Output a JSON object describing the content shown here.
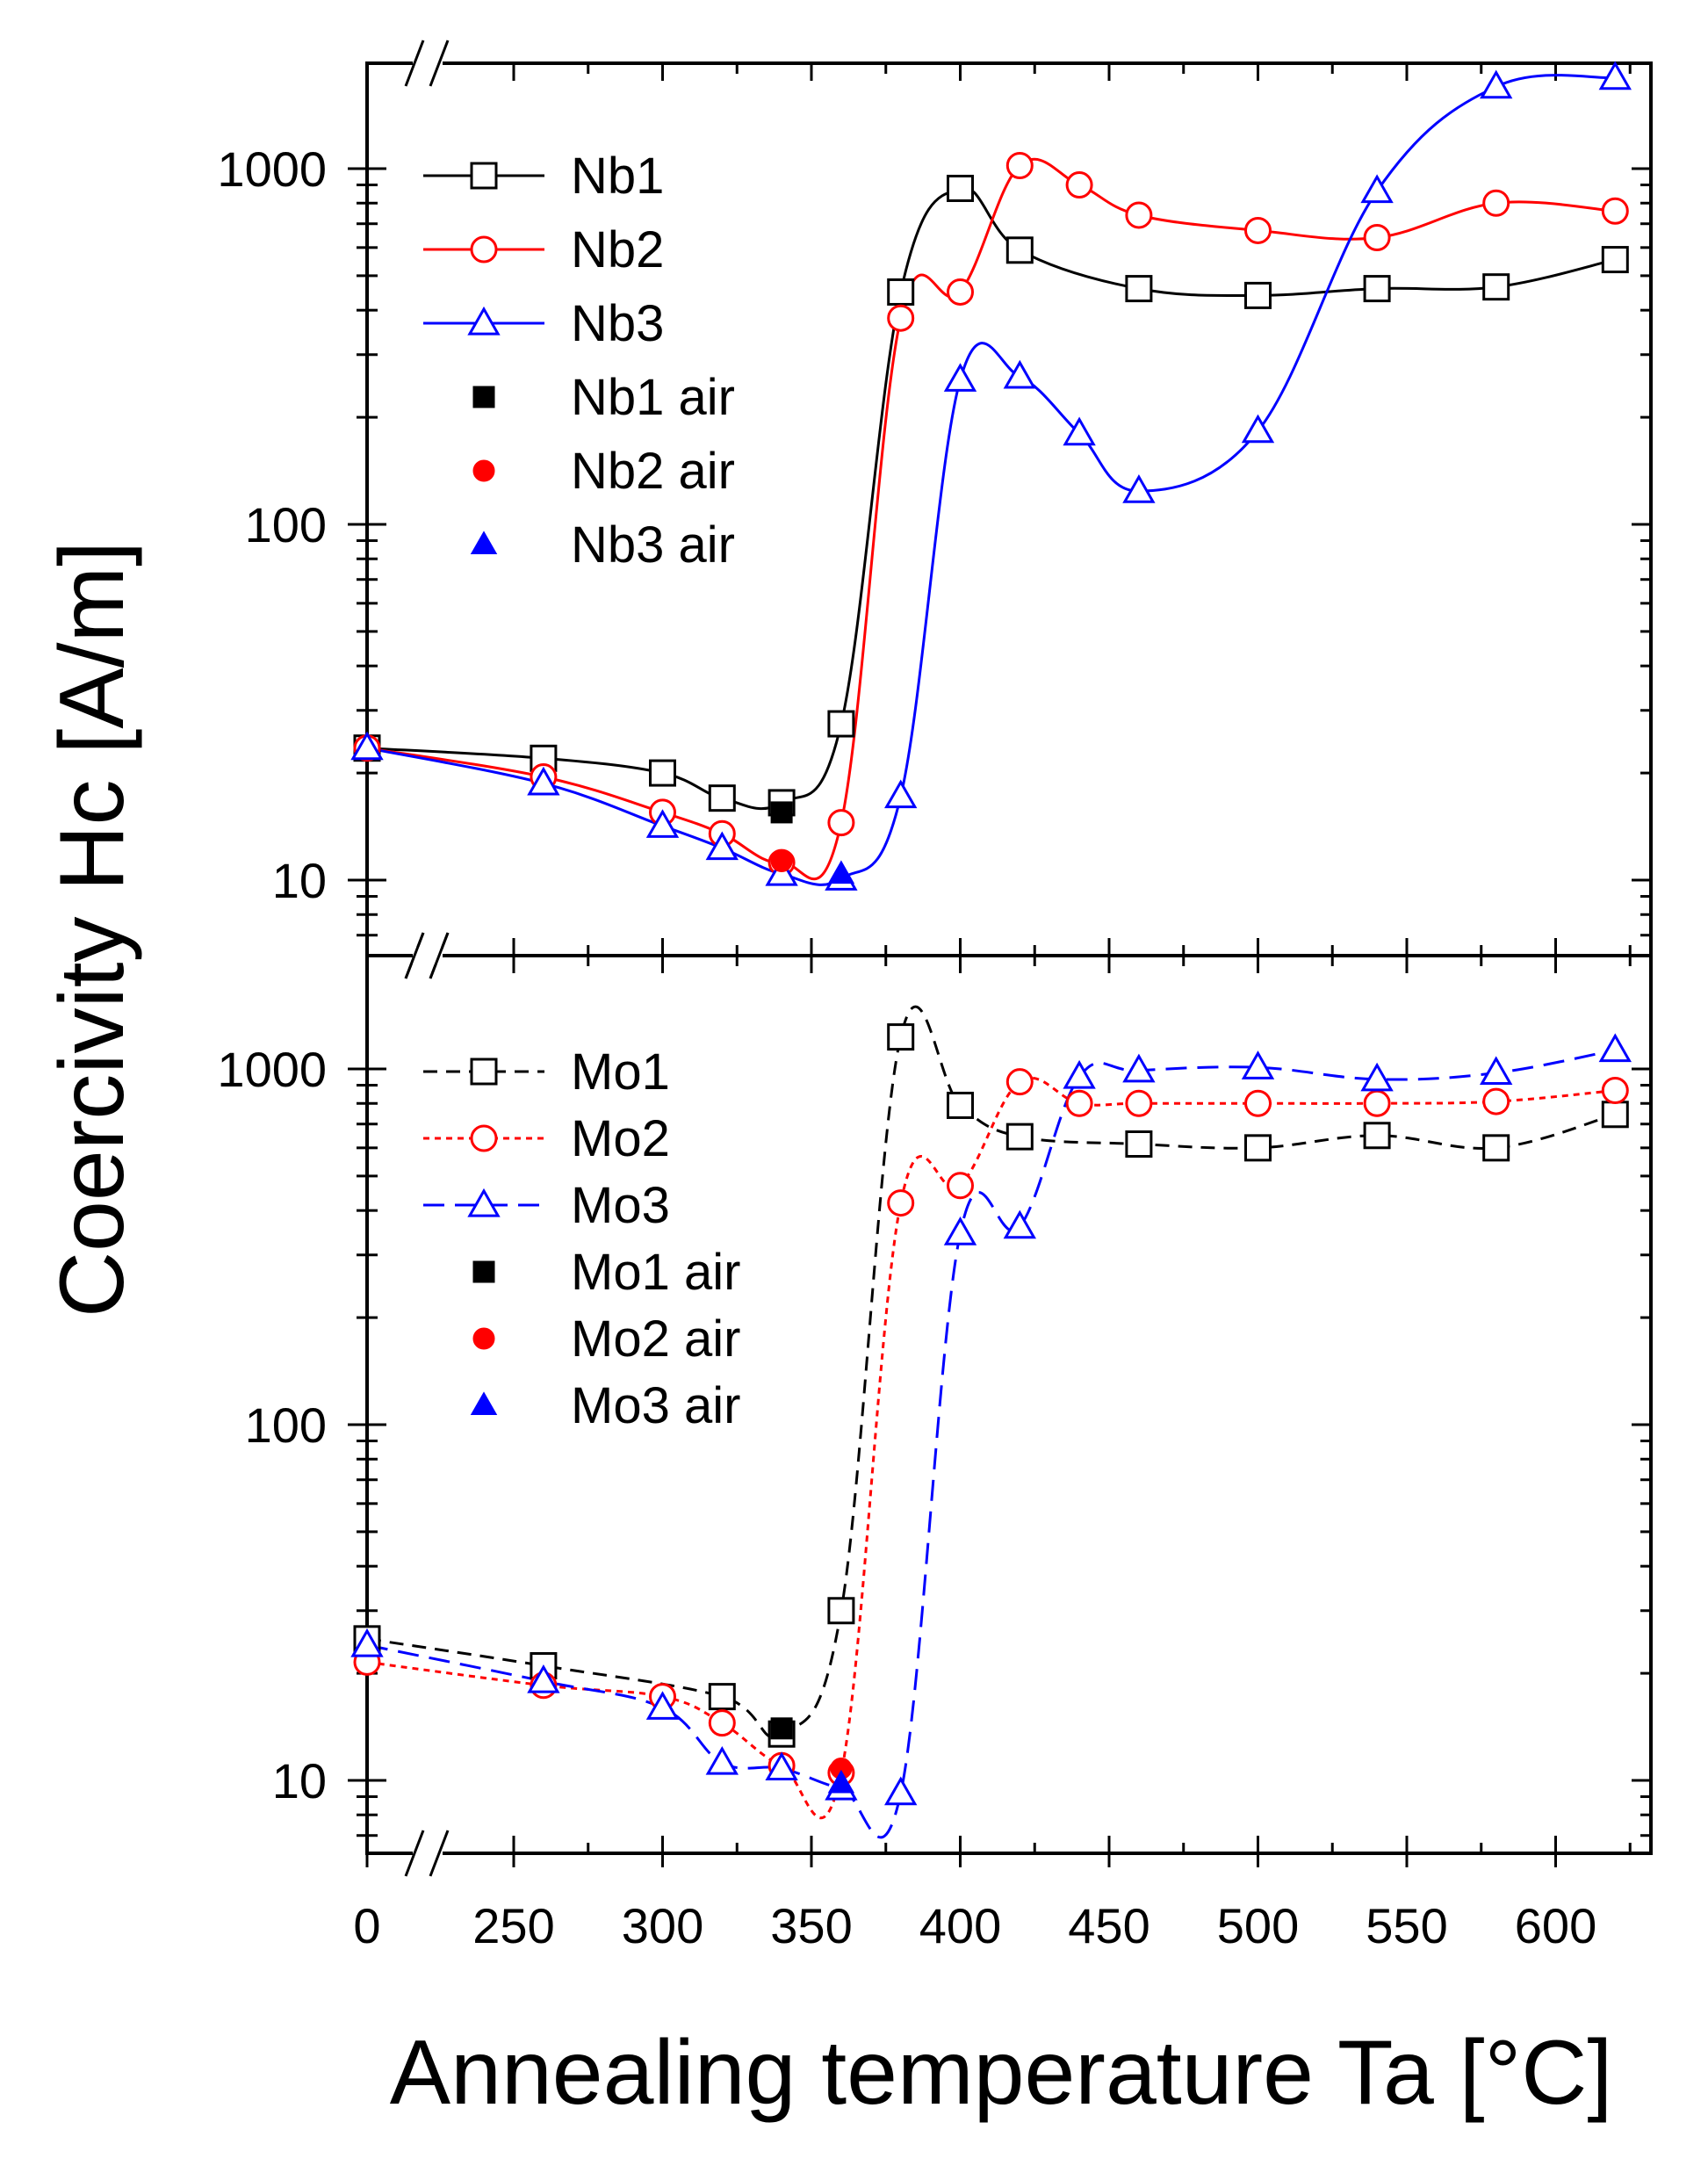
{
  "chart_data": [
    {
      "type": "line",
      "panel": "top",
      "yscale": "log",
      "ylim": [
        6.3,
        1900
      ],
      "xlim": [
        0,
        630
      ],
      "x_break_after": 0,
      "yticks": [
        "10",
        "100",
        "1000"
      ],
      "series": [
        {
          "name": "Nb1",
          "color": "#000000",
          "marker": "open-square",
          "line": "solid",
          "x": [
            0,
            260,
            300,
            320,
            340,
            360,
            380,
            400,
            420,
            460,
            500,
            540,
            580,
            620
          ],
          "values": [
            23.5,
            22,
            20,
            17,
            16.5,
            27.5,
            450,
            880,
            590,
            460,
            440,
            460,
            465,
            555
          ]
        },
        {
          "name": "Nb2",
          "color": "#ff0000",
          "marker": "open-circle",
          "line": "solid",
          "x": [
            0,
            260,
            300,
            320,
            340,
            360,
            380,
            400,
            420,
            440,
            460,
            500,
            540,
            580,
            620
          ],
          "values": [
            23.5,
            19.5,
            15.5,
            13.5,
            11.2,
            14.5,
            380,
            450,
            1020,
            900,
            740,
            670,
            640,
            800,
            760
          ]
        },
        {
          "name": "Nb3",
          "color": "#0000ff",
          "marker": "open-triangle",
          "line": "solid",
          "x": [
            0,
            260,
            300,
            320,
            340,
            360,
            380,
            400,
            420,
            440,
            460,
            500,
            540,
            580,
            620
          ],
          "values": [
            23.5,
            18.7,
            14.2,
            12.3,
            10.4,
            10.1,
            17.2,
            255,
            260,
            180,
            124,
            183,
            865,
            1700,
            1800
          ]
        },
        {
          "name": "Nb1 air",
          "color": "#000000",
          "marker": "filled-square",
          "line": "none",
          "x": [
            340
          ],
          "values": [
            15.5
          ]
        },
        {
          "name": "Nb2 air",
          "color": "#ff0000",
          "marker": "filled-circle",
          "line": "none",
          "x": [
            340
          ],
          "values": [
            11.3
          ]
        },
        {
          "name": "Nb3 air",
          "color": "#0000ff",
          "marker": "filled-triangle",
          "line": "none",
          "x": [
            360
          ],
          "values": [
            10.4
          ]
        }
      ]
    },
    {
      "type": "line",
      "panel": "bottom",
      "yscale": "log",
      "ylim": [
        5.6,
        1900
      ],
      "xlim": [
        0,
        630
      ],
      "x_break_after": 0,
      "yticks": [
        "10",
        "100",
        "1000"
      ],
      "xticks": [
        "0",
        "250",
        "300",
        "350",
        "400",
        "450",
        "500",
        "550",
        "600"
      ],
      "xlabel": "Annealing temperature Ta [°C]",
      "ylabel": "Coercivity Hc [A/m]",
      "series": [
        {
          "name": "Mo1",
          "color": "#000000",
          "marker": "open-square",
          "line": "dashed",
          "x": [
            0,
            260,
            320,
            340,
            360,
            380,
            400,
            420,
            460,
            500,
            540,
            580,
            620
          ],
          "values": [
            25,
            21,
            17.2,
            13.5,
            30,
            1230,
            790,
            645,
            615,
            600,
            650,
            600,
            745
          ]
        },
        {
          "name": "Mo2",
          "color": "#ff0000",
          "marker": "open-circle",
          "line": "dotted",
          "x": [
            0,
            260,
            300,
            320,
            340,
            360,
            380,
            400,
            420,
            440,
            460,
            500,
            540,
            580,
            620
          ],
          "values": [
            21.5,
            18.5,
            17.2,
            14.5,
            11,
            10.5,
            420,
            470,
            920,
            800,
            800,
            800,
            800,
            810,
            870
          ]
        },
        {
          "name": "Mo3",
          "color": "#0000ff",
          "marker": "open-triangle",
          "line": "long-dashed",
          "x": [
            0,
            260,
            300,
            320,
            340,
            360,
            380,
            400,
            420,
            440,
            460,
            500,
            540,
            580,
            620
          ],
          "values": [
            24,
            19,
            16,
            11.2,
            10.8,
            9.5,
            9.2,
            345,
            360,
            950,
            990,
            1010,
            935,
            975,
            1130
          ]
        },
        {
          "name": "Mo1 air",
          "color": "#000000",
          "marker": "filled-square",
          "line": "none",
          "x": [
            340
          ],
          "values": [
            14
          ]
        },
        {
          "name": "Mo2 air",
          "color": "#ff0000",
          "marker": "filled-circle",
          "line": "none",
          "x": [
            360
          ],
          "values": [
            10.8
          ]
        },
        {
          "name": "Mo3 air",
          "color": "#0000ff",
          "marker": "filled-triangle",
          "line": "none",
          "x": [
            360
          ],
          "values": [
            9.8
          ]
        }
      ]
    }
  ]
}
